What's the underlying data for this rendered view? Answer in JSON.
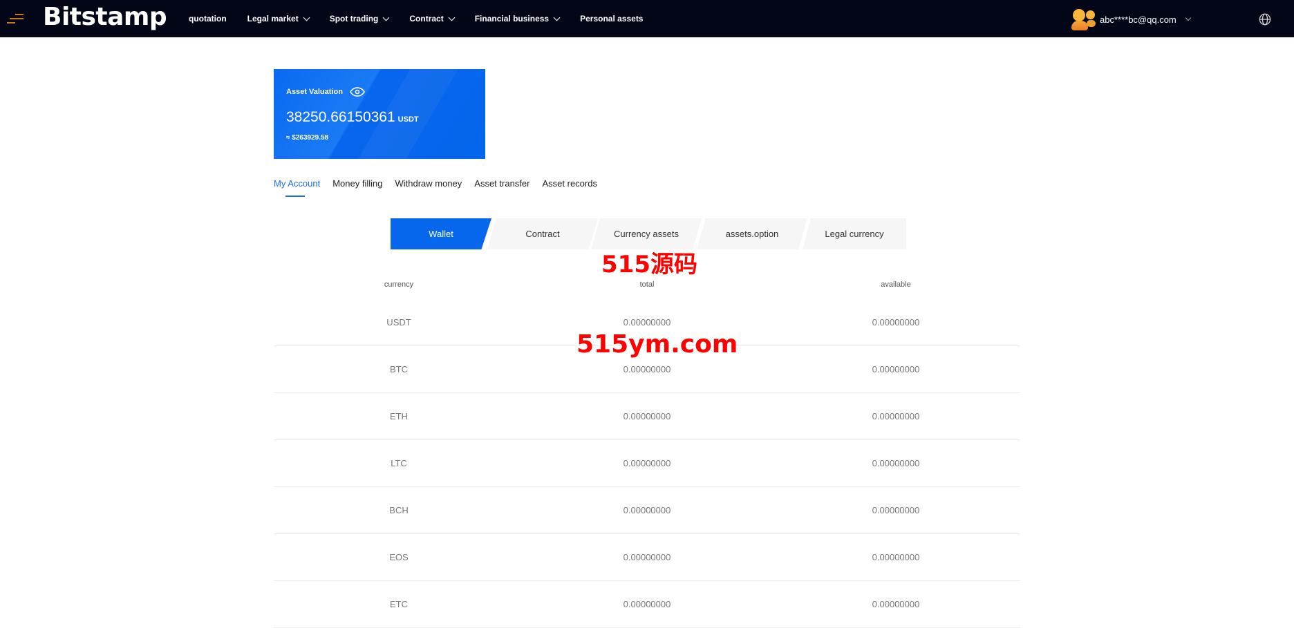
{
  "header": {
    "logo": "Bitstamp",
    "nav": [
      {
        "label": "quotation",
        "dropdown": false
      },
      {
        "label": "Legal market",
        "dropdown": true
      },
      {
        "label": "Spot trading",
        "dropdown": true
      },
      {
        "label": "Contract",
        "dropdown": true
      },
      {
        "label": "Financial business",
        "dropdown": true
      },
      {
        "label": "Personal assets",
        "dropdown": false
      }
    ],
    "user_email": "abc****bc@qq.com"
  },
  "asset_card": {
    "label": "Asset Valuation",
    "value": "38250.66150361",
    "unit": "USDT",
    "approx": "≈ $263929.58"
  },
  "tabs": [
    "My Account",
    "Money filling",
    "Withdraw money",
    "Asset transfer",
    "Asset records"
  ],
  "subtabs": [
    "Wallet",
    "Contract",
    "Currency assets",
    "assets.option",
    "Legal currency"
  ],
  "table": {
    "headers": [
      "currency",
      "total",
      "available"
    ],
    "rows": [
      [
        "USDT",
        "0.00000000",
        "0.00000000"
      ],
      [
        "BTC",
        "0.00000000",
        "0.00000000"
      ],
      [
        "ETH",
        "0.00000000",
        "0.00000000"
      ],
      [
        "LTC",
        "0.00000000",
        "0.00000000"
      ],
      [
        "BCH",
        "0.00000000",
        "0.00000000"
      ],
      [
        "EOS",
        "0.00000000",
        "0.00000000"
      ],
      [
        "ETC",
        "0.00000000",
        "0.00000000"
      ]
    ]
  },
  "watermark": {
    "line1": "515源码",
    "line2": "515ym.com"
  },
  "colors": {
    "header_bg": "#020617",
    "accent": "#0767ec",
    "watermark": "#ff0000"
  }
}
